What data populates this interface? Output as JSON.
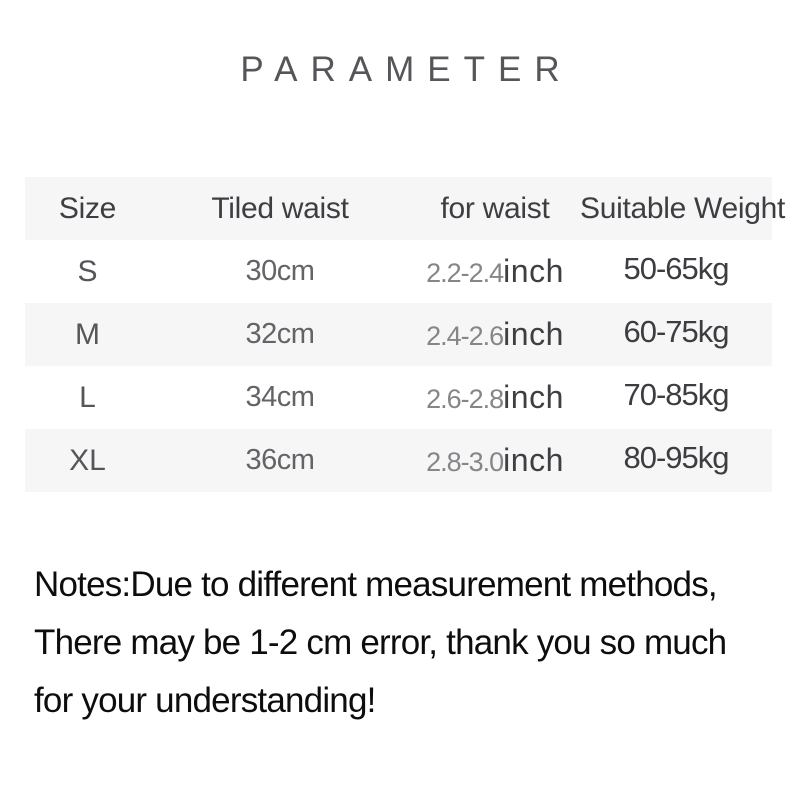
{
  "title": "PARAMETER",
  "table": {
    "headers": [
      "Size",
      "Tiled waist",
      "for waist",
      "Suitable Weight"
    ],
    "rows": [
      {
        "size": "S",
        "tiled_waist": "30cm",
        "for_waist_num": "2.2-2.4",
        "for_waist_unit": "inch",
        "weight": "50-65kg"
      },
      {
        "size": "M",
        "tiled_waist": "32cm",
        "for_waist_num": "2.4-2.6",
        "for_waist_unit": "inch",
        "weight": "60-75kg"
      },
      {
        "size": "L",
        "tiled_waist": "34cm",
        "for_waist_num": "2.6-2.8",
        "for_waist_unit": "inch",
        "weight": "70-85kg"
      },
      {
        "size": "XL",
        "tiled_waist": "36cm",
        "for_waist_num": "2.8-3.0",
        "for_waist_unit": "inch",
        "weight": "80-95kg"
      }
    ]
  },
  "notes": {
    "lines": [
      "Notes:Due to different measurement methods,",
      "There may be 1-2 cm error, thank you so much",
      "for your understanding!"
    ]
  },
  "colors": {
    "row_stripe": "#f6f6f7",
    "title_text": "#55565a",
    "header_text": "#3d3e42",
    "waist_number_text": "#85868a",
    "inch_text": "#3e3f43",
    "weight_text": "#3c3d40",
    "notes_text": "#0d0d0d",
    "background": "#ffffff"
  }
}
